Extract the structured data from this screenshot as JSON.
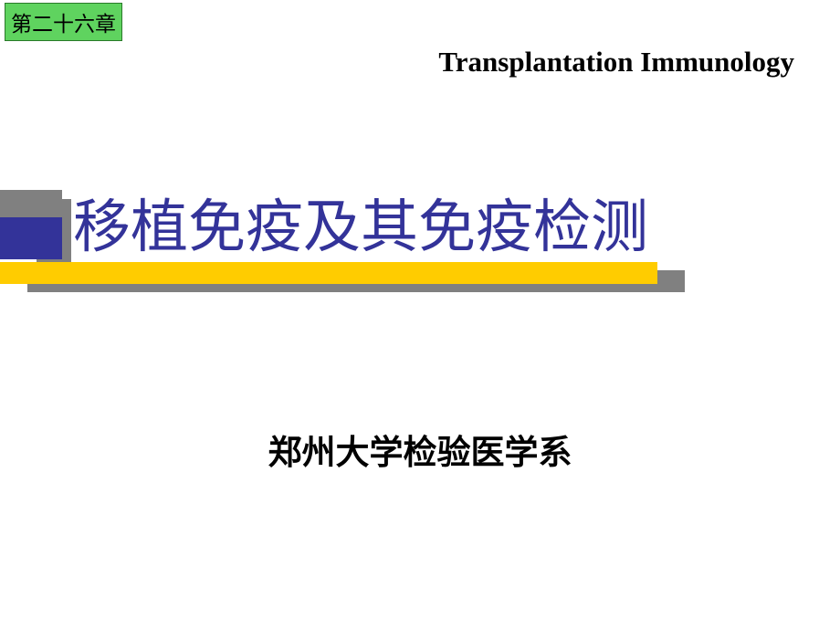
{
  "chapter_badge": "第二十六章",
  "header_subtitle": "Transplantation Immunology",
  "main_title": "移植免疫及其免疫检测",
  "organization": "郑州大学检验医学系",
  "colors": {
    "badge_bg": "#5fd35f",
    "badge_border": "#2a7a2a",
    "title_color": "#333399",
    "accent_yellow": "#ffcc00",
    "shadow_gray": "#808080",
    "text_black": "#000000",
    "background": "#ffffff"
  },
  "typography": {
    "badge_fontsize": 23,
    "header_subtitle_fontsize": 31,
    "main_title_fontsize": 63,
    "organization_fontsize": 37
  }
}
